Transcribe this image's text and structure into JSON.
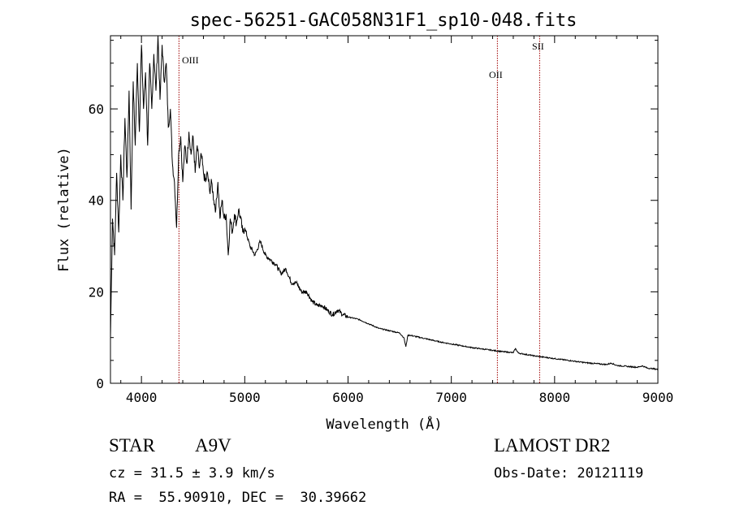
{
  "chart_data": {
    "type": "line",
    "title": "spec-56251-GAC058N31F1_sp10-048.fits",
    "xlabel": "Wavelength (Å)",
    "ylabel": "Flux (relative)",
    "xlim": [
      3700,
      9000
    ],
    "ylim": [
      0,
      76
    ],
    "xticks": [
      4000,
      5000,
      6000,
      7000,
      8000,
      9000
    ],
    "yticks": [
      0,
      20,
      40,
      60
    ],
    "series": [
      {
        "name": "spectrum",
        "x": [
          3700,
          3720,
          3740,
          3760,
          3780,
          3800,
          3820,
          3840,
          3860,
          3880,
          3900,
          3920,
          3940,
          3960,
          3980,
          4000,
          4020,
          4040,
          4060,
          4080,
          4100,
          4120,
          4140,
          4160,
          4180,
          4200,
          4220,
          4240,
          4260,
          4280,
          4300,
          4320,
          4340,
          4360,
          4380,
          4400,
          4420,
          4440,
          4460,
          4480,
          4500,
          4520,
          4540,
          4560,
          4580,
          4600,
          4620,
          4640,
          4660,
          4680,
          4700,
          4720,
          4740,
          4760,
          4780,
          4800,
          4820,
          4840,
          4860,
          4880,
          4900,
          4920,
          4940,
          4960,
          4980,
          5000,
          5050,
          5100,
          5150,
          5200,
          5250,
          5300,
          5350,
          5400,
          5450,
          5500,
          5550,
          5600,
          5650,
          5700,
          5750,
          5800,
          5850,
          5900,
          5950,
          6000,
          6100,
          6200,
          6300,
          6400,
          6500,
          6540,
          6560,
          6580,
          6600,
          6700,
          6800,
          6900,
          7000,
          7100,
          7200,
          7300,
          7400,
          7500,
          7600,
          7620,
          7650,
          7700,
          7800,
          7900,
          8000,
          8100,
          8200,
          8300,
          8400,
          8500,
          8550,
          8600,
          8700,
          8800,
          8850,
          8900,
          8950,
          9000
        ],
        "y": [
          10,
          36,
          28,
          46,
          33,
          50,
          40,
          58,
          45,
          64,
          38,
          66,
          52,
          70,
          55,
          74,
          60,
          68,
          52,
          70,
          60,
          72,
          64,
          76,
          62,
          74,
          66,
          70,
          56,
          60,
          48,
          44,
          34,
          50,
          54,
          44,
          52,
          48,
          55,
          50,
          54,
          46,
          52,
          47,
          50,
          46,
          44,
          46,
          42,
          44,
          40,
          38,
          44,
          36,
          40,
          36,
          37,
          28,
          36,
          33,
          37,
          35,
          38,
          36,
          33,
          34,
          30,
          28,
          31,
          28,
          27,
          26,
          24,
          25,
          22,
          22,
          20,
          20,
          18,
          17,
          17,
          16,
          15,
          16,
          15,
          14.5,
          14,
          13,
          12,
          11.5,
          11,
          10,
          8,
          10.5,
          10.5,
          10,
          9.5,
          9,
          8.6,
          8.2,
          7.8,
          7.5,
          7.2,
          6.9,
          6.7,
          7.6,
          6.6,
          6.4,
          6,
          5.7,
          5.4,
          5.1,
          4.8,
          4.5,
          4.3,
          4.1,
          4.4,
          3.9,
          3.7,
          3.5,
          3.8,
          3.3,
          3.2,
          3.0
        ]
      }
    ],
    "lines": [
      {
        "label": "OIII",
        "x": 4363,
        "color": "#a00000"
      },
      {
        "label": "OII",
        "x": 7446,
        "color": "#a00000"
      },
      {
        "label": "SII",
        "x": 7855,
        "color": "#a00000"
      }
    ],
    "line_color": "#000000"
  },
  "footer": {
    "class_label": "STAR",
    "subclass": "A9V",
    "cz": "cz = 31.5 ± 3.9 km/s",
    "coords": "RA =  55.90910, DEC =  30.39662",
    "survey": "LAMOST DR2",
    "obs_date": "Obs-Date: 20121119"
  }
}
